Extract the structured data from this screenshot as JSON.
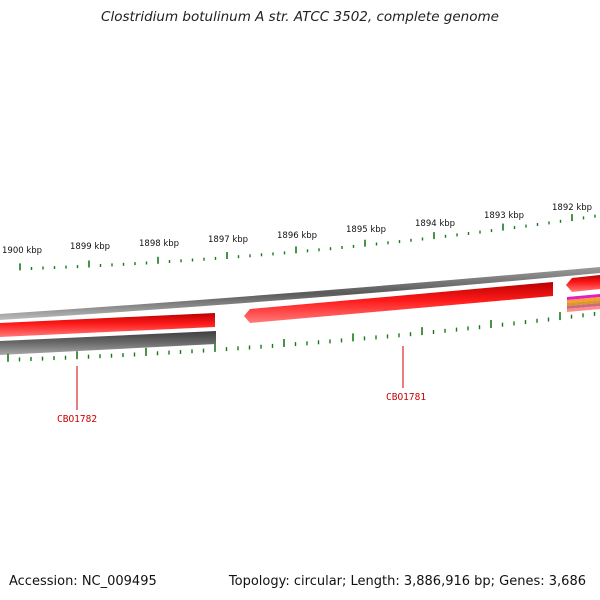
{
  "title": "Clostridium botulinum A str. ATCC 3502, complete genome",
  "footer": {
    "accession": "Accession: NC_009495",
    "summary": "Topology: circular; Length: 3,886,916 bp; Genes: 3,686"
  },
  "tick_labels": [
    "1900 kbp",
    "1899 kbp",
    "1898 kbp",
    "1897 kbp",
    "1896 kbp",
    "1895 kbp",
    "1894 kbp",
    "1893 kbp",
    "1892 kbp"
  ],
  "gene_labels": [
    "CBO1782",
    "CBO1781"
  ],
  "colors": {
    "gene": "#e60000",
    "gene_highlight": "#ff7070",
    "backbone": "#777777",
    "cds_gray": "#5c5c5c",
    "tick": "#1a7a1a",
    "label": "#cc0000"
  }
}
